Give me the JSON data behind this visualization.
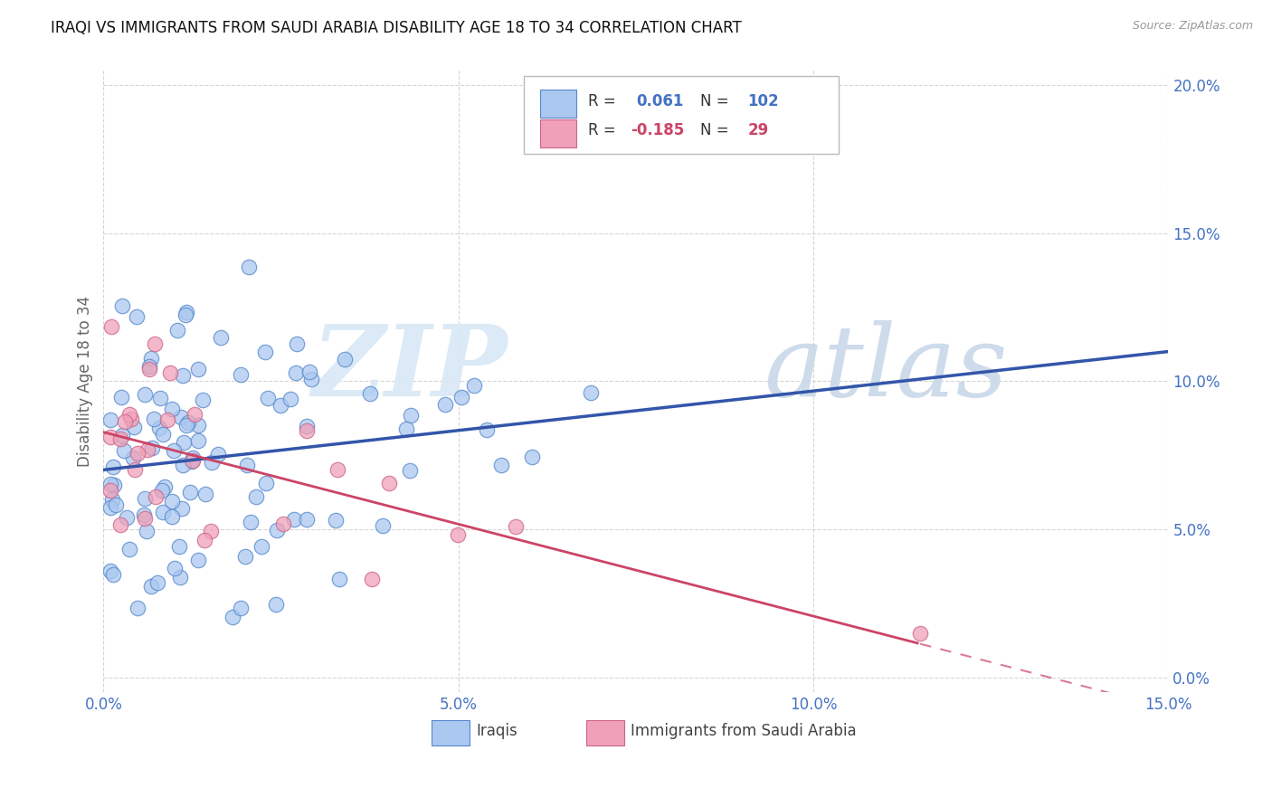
{
  "title": "IRAQI VS IMMIGRANTS FROM SAUDI ARABIA DISABILITY AGE 18 TO 34 CORRELATION CHART",
  "source": "Source: ZipAtlas.com",
  "xlim": [
    0.0,
    0.15
  ],
  "ylim": [
    -0.005,
    0.205
  ],
  "ylabel": "Disability Age 18 to 34",
  "legend_label1": "Iraqis",
  "legend_label2": "Immigrants from Saudi Arabia",
  "R1": 0.061,
  "N1": 102,
  "R2": -0.185,
  "N2": 29,
  "color_blue": "#aac8f0",
  "color_blue_edge": "#5588cc",
  "color_blue_line": "#3355aa",
  "color_pink": "#f0a0b8",
  "color_pink_edge": "#cc6688",
  "color_pink_line": "#cc4466",
  "watermark_zip": "ZIP",
  "watermark_atlas": "atlas",
  "x_ticks": [
    0.0,
    0.05,
    0.1,
    0.15
  ],
  "y_ticks": [
    0.0,
    0.05,
    0.1,
    0.15,
    0.2
  ],
  "x_tick_labels": [
    "0.0%",
    "5.0%",
    "10.0%",
    "15.0%"
  ],
  "y_tick_labels": [
    "0.0%",
    "5.0%",
    "10.0%",
    "15.0%",
    "20.0%"
  ]
}
